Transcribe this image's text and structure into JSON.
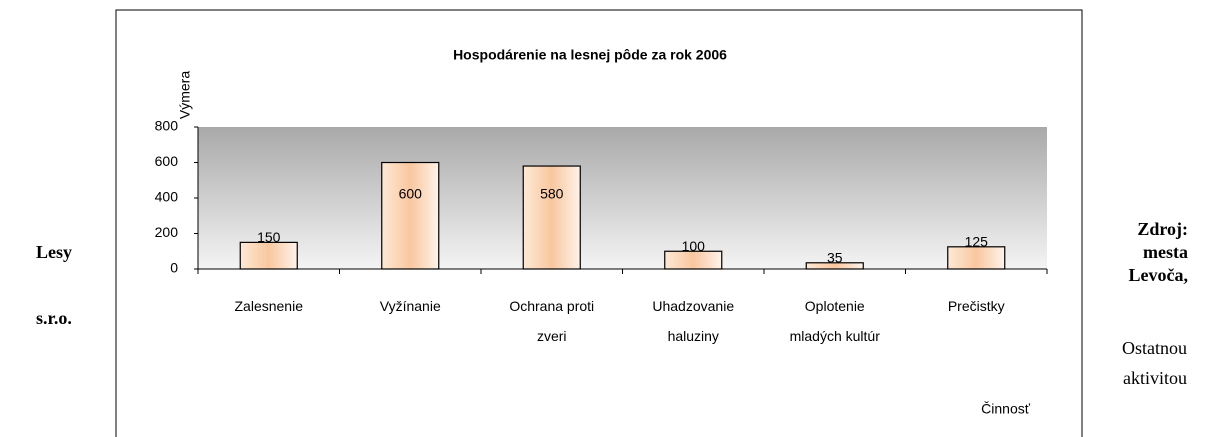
{
  "left_text": [
    "Lesy",
    "s.r.o."
  ],
  "right_text": {
    "bold": [
      "Zdroj:",
      "mesta",
      "Levoča,"
    ],
    "normal": [
      "Ostatnou",
      "aktivitou"
    ]
  },
  "chart_data": {
    "type": "bar",
    "title": "Hospodárenie na lesnej pôde za rok  2006",
    "y_label": "Výmera",
    "x_label": "Činnosť",
    "categories": [
      "Zalesnenie",
      "Vyžínanie",
      "Ochrana proti\nzveri",
      "Uhadzovanie\nhaluziny",
      "Oplotenie\nmladých kultúr",
      "Prečistky"
    ],
    "values": [
      150,
      600,
      580,
      100,
      35,
      125
    ],
    "ylim": [
      0,
      800
    ],
    "yticks": [
      0,
      200,
      400,
      600,
      800
    ]
  }
}
